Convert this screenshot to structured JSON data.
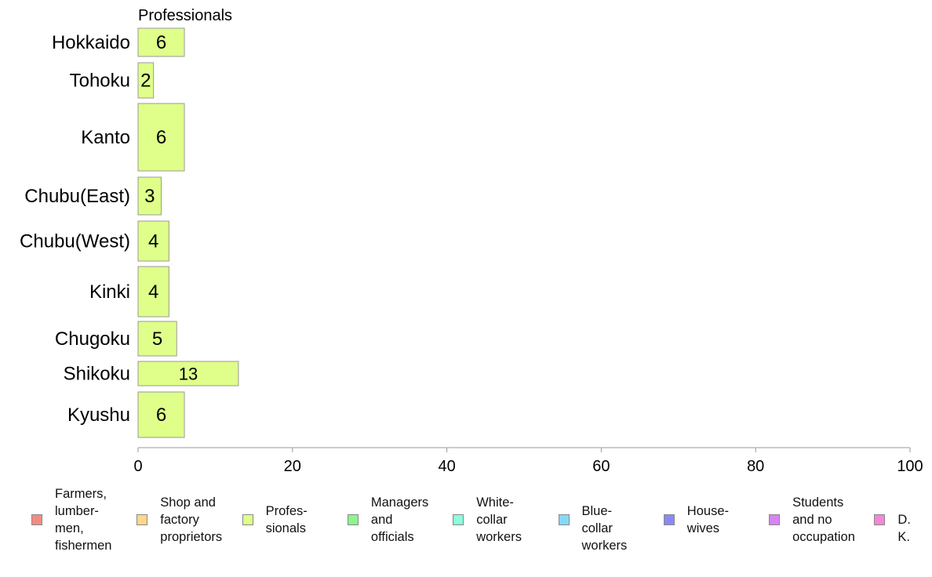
{
  "chart_data": {
    "type": "bar",
    "orientation": "horizontal",
    "title": "Professionals",
    "categories": [
      "Hokkaido",
      "Tohoku",
      "Kanto",
      "Chubu(East)",
      "Chubu(West)",
      "Kinki",
      "Chugoku",
      "Shikoku",
      "Kyushu"
    ],
    "values": [
      6,
      2,
      6,
      3,
      4,
      4,
      5,
      13,
      6
    ],
    "bar_value_labels": [
      "6",
      "2",
      "6",
      "3",
      "4",
      "4",
      "5",
      "13",
      "6"
    ],
    "xlim": [
      0,
      100
    ],
    "x_ticks": [
      "0",
      "20",
      "40",
      "60",
      "80",
      "100"
    ],
    "xlabel": "",
    "ylabel": "",
    "grid": false,
    "bar_color": "#dfff8a",
    "bar_edge_color": "#999999",
    "legend_position": "bottom",
    "legend": [
      {
        "label": "Farmers,\nlumber-\nmen,\nfishermen",
        "color": "#f28b82"
      },
      {
        "label": "Shop and\nfactory\nproprietors",
        "color": "#ffd98a"
      },
      {
        "label": "Profes-\nsionals",
        "color": "#dfff8a"
      },
      {
        "label": "Managers\nand\nofficials",
        "color": "#8cf58c"
      },
      {
        "label": "White-\ncollar\nworkers",
        "color": "#8affdc"
      },
      {
        "label": "Blue-collar\nworkers",
        "color": "#86d8f7"
      },
      {
        "label": "House-\nwives",
        "color": "#8a8af5"
      },
      {
        "label": "Students\nand no\noccupation",
        "color": "#d883f5"
      },
      {
        "label": "D. K.",
        "color": "#f587d6"
      }
    ]
  }
}
